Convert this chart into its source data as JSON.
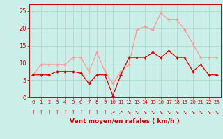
{
  "x": [
    0,
    1,
    2,
    3,
    4,
    5,
    6,
    7,
    8,
    9,
    10,
    11,
    12,
    13,
    14,
    15,
    16,
    17,
    18,
    19,
    20,
    21,
    22,
    23
  ],
  "wind_avg": [
    6.5,
    6.5,
    6.5,
    7.5,
    7.5,
    7.5,
    7.0,
    4.0,
    6.5,
    6.5,
    0.5,
    6.5,
    11.5,
    11.5,
    11.5,
    13.0,
    11.5,
    13.5,
    11.5,
    11.5,
    7.5,
    9.5,
    6.5,
    6.5
  ],
  "wind_gust": [
    6.5,
    9.5,
    9.5,
    9.5,
    9.5,
    11.5,
    11.5,
    7.5,
    13.0,
    7.5,
    4.0,
    7.5,
    9.5,
    19.5,
    20.5,
    19.5,
    24.5,
    22.5,
    22.5,
    19.5,
    15.5,
    11.5,
    11.5,
    11.5
  ],
  "color_avg": "#dd0000",
  "color_gust": "#ff9999",
  "bg_color": "#cceee8",
  "grid_color": "#aaddcc",
  "xlabel": "Vent moyen/en rafales ( km/h )",
  "ylim": [
    0,
    27
  ],
  "yticks": [
    0,
    5,
    10,
    15,
    20,
    25
  ],
  "label_color": "#cc0000",
  "arrow_symbols": [
    "↑",
    "↑",
    "↑",
    "↑",
    "↑",
    "↑",
    "↑",
    "↑",
    "↑",
    "↑",
    "↗",
    "↗",
    "↘",
    "↘",
    "↘",
    "↘",
    "↘",
    "↘",
    "↘",
    "↘",
    "↘",
    "↘",
    "↘",
    "↘"
  ]
}
